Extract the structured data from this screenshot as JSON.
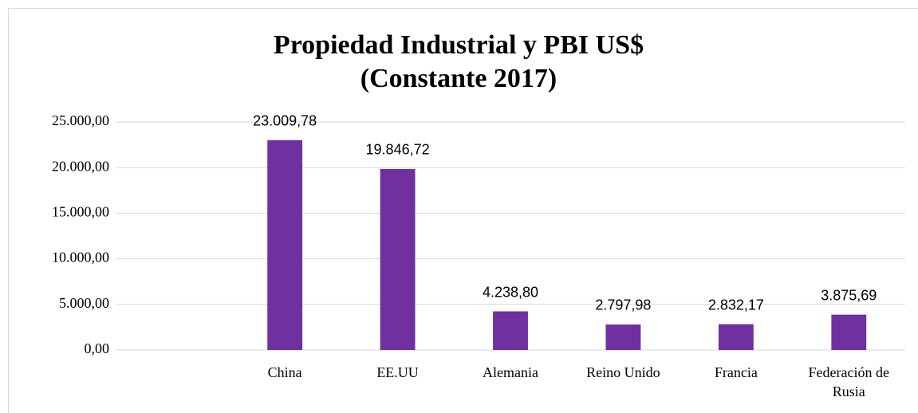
{
  "chart_data": {
    "type": "bar",
    "title": [
      "Propiedad Industrial y PBI US$",
      "(Constante 2017)"
    ],
    "categories": [
      null,
      "China",
      "EE.UU",
      "Alemania",
      "Reino Unido",
      "Francia",
      "Federación de Rusia"
    ],
    "values": [
      null,
      23009.78,
      19846.72,
      4238.8,
      2797.98,
      2832.17,
      3875.69
    ],
    "value_labels": [
      null,
      "23.009,78",
      "19.846,72",
      "4.238,80",
      "2.797,98",
      "2.832,17",
      "3.875,69"
    ],
    "color": "#7030a0",
    "ylim": [
      0,
      25000
    ],
    "yticks": [
      {
        "value": 0,
        "label": "0,00"
      },
      {
        "value": 5000,
        "label": "5.000,00"
      },
      {
        "value": 10000,
        "label": "10.000,00"
      },
      {
        "value": 15000,
        "label": "15.000,00"
      },
      {
        "value": 20000,
        "label": "20.000,00"
      },
      {
        "value": 25000,
        "label": "25.000,00"
      }
    ],
    "grid": true
  }
}
